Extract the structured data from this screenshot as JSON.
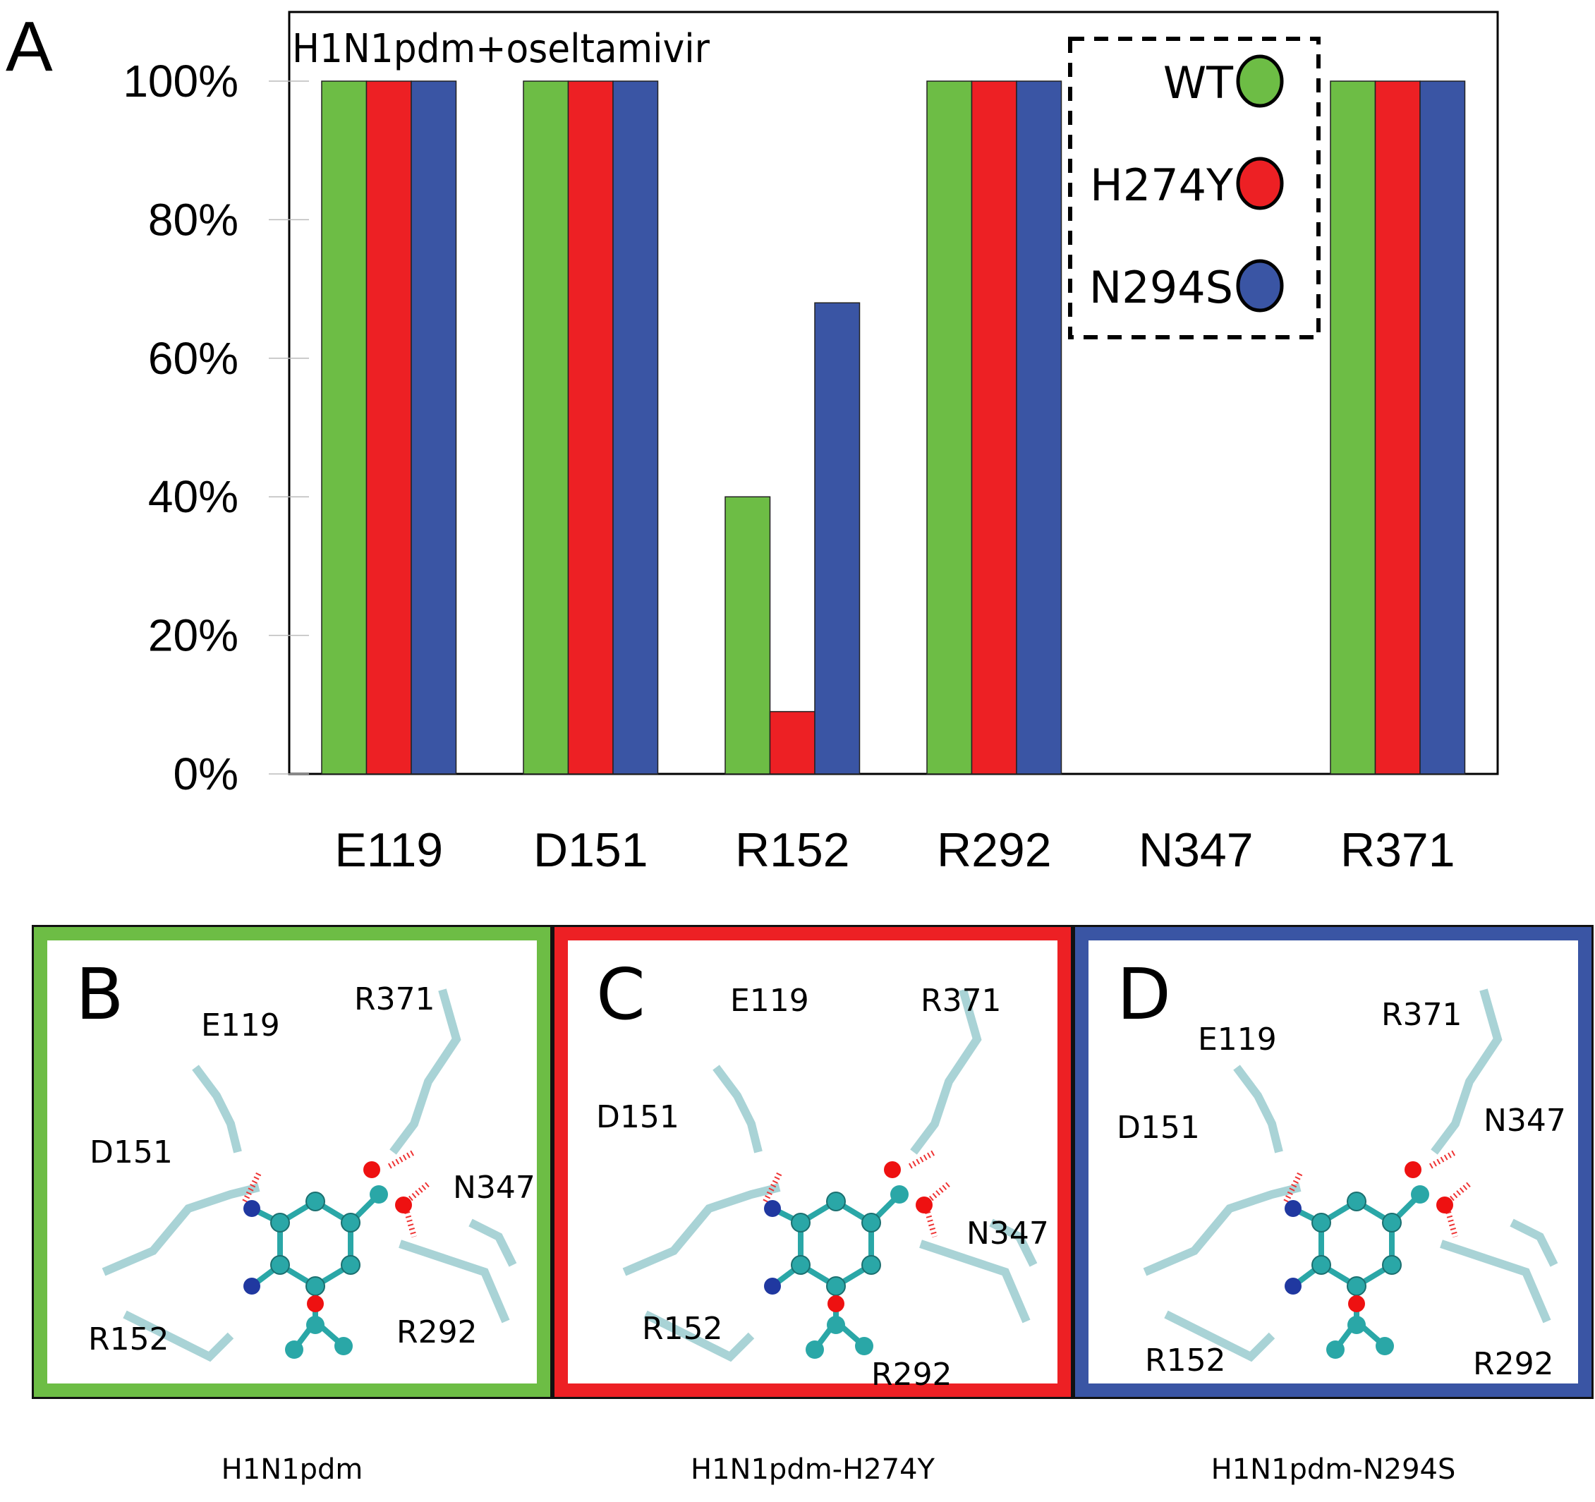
{
  "figure": {
    "panel_a_letter": "A",
    "legend": [
      {
        "label": "WT",
        "color": "#6dbd45"
      },
      {
        "label": "H274Y",
        "color": "#ed2024"
      },
      {
        "label": "N294S",
        "color": "#3a55a4"
      }
    ]
  },
  "chart_data": {
    "type": "bar",
    "title": "H1N1pdm+oseltamivir",
    "xlabel": "",
    "ylabel": "",
    "categories": [
      "E119",
      "D151",
      "R152",
      "R292",
      "N347",
      "R371"
    ],
    "series": [
      {
        "name": "WT",
        "color": "#6dbd45",
        "values": [
          100,
          100,
          40,
          100,
          0,
          100
        ]
      },
      {
        "name": "H274Y",
        "color": "#ed2024",
        "values": [
          100,
          100,
          9,
          100,
          0,
          100
        ]
      },
      {
        "name": "N294S",
        "color": "#3a55a4",
        "values": [
          100,
          100,
          68,
          100,
          0,
          100
        ]
      }
    ],
    "ylim": [
      0,
      100
    ],
    "yticks": [
      0,
      20,
      40,
      60,
      80,
      100
    ],
    "ytick_labels": [
      "0%",
      "20%",
      "40%",
      "60%",
      "80%",
      "100%"
    ],
    "grid": false,
    "legend_position": "top-right"
  },
  "panels": [
    {
      "letter": "B",
      "caption": "H1N1pdm",
      "border_color": "#6dbd45",
      "residues": [
        "E119",
        "R371",
        "D151",
        "N347",
        "R152",
        "R292"
      ]
    },
    {
      "letter": "C",
      "caption": "H1N1pdm-H274Y",
      "border_color": "#ed2024",
      "residues": [
        "E119",
        "R371",
        "D151",
        "N347",
        "R152",
        "R292"
      ]
    },
    {
      "letter": "D",
      "caption": "H1N1pdm-N294S",
      "border_color": "#3a55a4",
      "residues": [
        "E119",
        "R371",
        "D151",
        "N347",
        "R152",
        "R292"
      ]
    }
  ]
}
